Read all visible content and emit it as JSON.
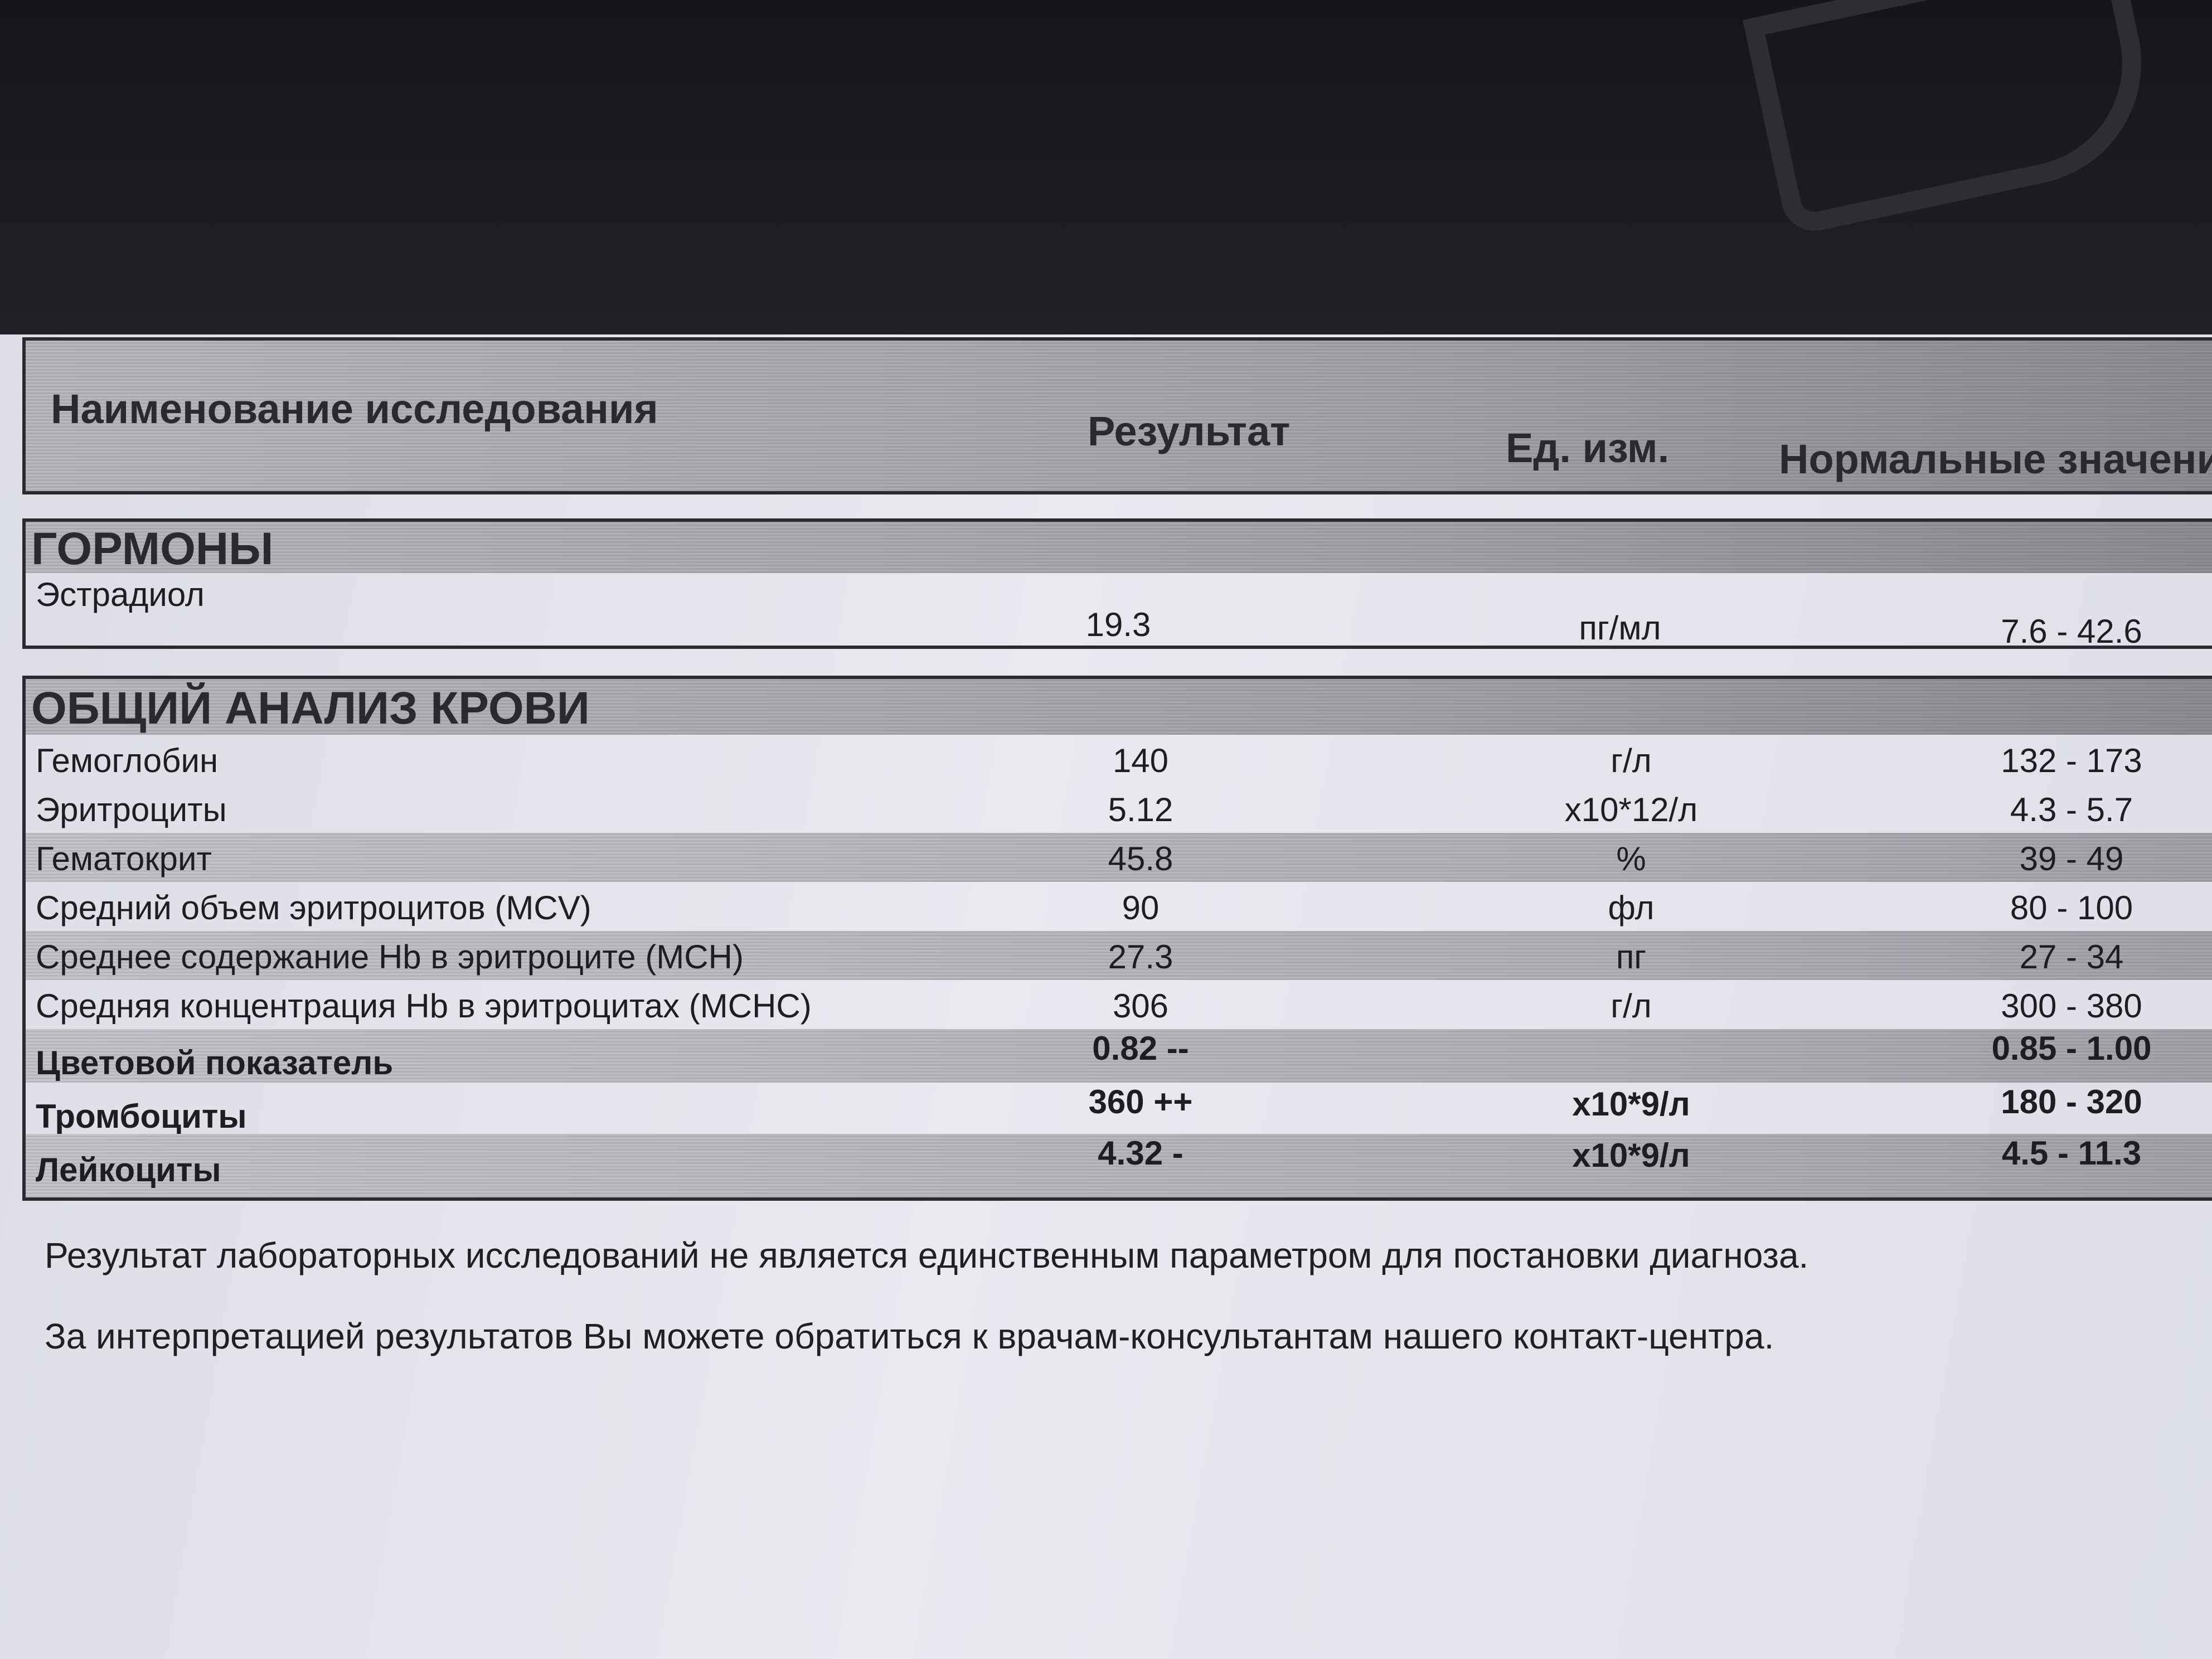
{
  "header": {
    "name": "Наименование исследования",
    "result": "Результат",
    "unit": "Ед. изм.",
    "norm": "Нормальные значени"
  },
  "sections": [
    {
      "title": "ГОРМОНЫ",
      "rows": [
        {
          "name": "Эстрадиол",
          "result": "19.3",
          "unit": "пг/мл",
          "norm": "7.6 - 42.6"
        }
      ]
    },
    {
      "title": "ОБЩИЙ АНАЛИЗ КРОВИ",
      "rows": [
        {
          "name": "Гемоглобин",
          "result": "140",
          "unit": "г/л",
          "norm": "132 - 173"
        },
        {
          "name": "Эритроциты",
          "result": "5.12",
          "unit": "x10*12/л",
          "norm": "4.3 - 5.7"
        },
        {
          "name": "Гематокрит",
          "result": "45.8",
          "unit": "%",
          "norm": "39 - 49"
        },
        {
          "name": "Средний объем эритроцитов (MCV)",
          "result": "90",
          "unit": "фл",
          "norm": "80 - 100"
        },
        {
          "name": "Среднее содержание Hb в эритроците (MCH)",
          "result": "27.3",
          "unit": "пг",
          "norm": "27 - 34"
        },
        {
          "name": "Средняя концентрация Hb в эритроцитах (MCHC)",
          "result": "306",
          "unit": "г/л",
          "norm": "300 - 380"
        },
        {
          "name": "Цветовой показатель",
          "result": "0.82 --",
          "unit": "",
          "norm": "0.85 - 1.00"
        },
        {
          "name": "Тромбоциты",
          "result": "360 ++",
          "unit": "x10*9/л",
          "norm": "180 - 320"
        },
        {
          "name": "Лейкоциты",
          "result": "4.32 -",
          "unit": "x10*9/л",
          "norm": "4.5 - 11.3"
        }
      ]
    }
  ],
  "notes": [
    "Результат лабораторных исследований не является единственным параметром для постановки диагноза.",
    "За интерпретацией результатов Вы можете обратиться к врачам-консультантам нашего контакт-центра."
  ]
}
